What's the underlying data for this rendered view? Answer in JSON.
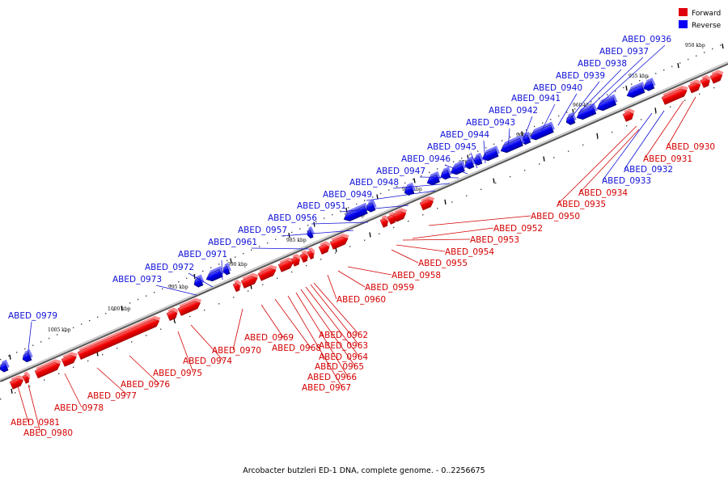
{
  "legend": {
    "forward_label": "Forward",
    "reverse_label": "Reverse",
    "forward_color": "#e0000e",
    "reverse_color": "#0a00f5"
  },
  "caption": "Arcobacter butzleri ED-1 DNA, complete genome. - 0..2256675",
  "ticks": [
    "950 kbp",
    "955 kbp",
    "960 kbp",
    "965 kbp",
    "970 kbp",
    "975 kbp",
    "980 kbp",
    "985 kbp",
    "990 kbp",
    "995 kbp",
    "1000 kbp",
    "1005 kbp"
  ],
  "reverse_genes": [
    "ABED_0936",
    "ABED_0937",
    "ABED_0938",
    "ABED_0939",
    "ABED_0940",
    "ABED_0941",
    "ABED_0942",
    "ABED_0943",
    "ABED_0944",
    "ABED_0945",
    "ABED_0946",
    "ABED_0947",
    "ABED_0948",
    "ABED_0949",
    "ABED_0951",
    "ABED_0956",
    "ABED_0957",
    "ABED_0961",
    "ABED_0971",
    "ABED_0972",
    "ABED_0973",
    "ABED_0979",
    "ABED_0932",
    "ABED_0933"
  ],
  "forward_genes": [
    "ABED_0930",
    "ABED_0931",
    "ABED_0934",
    "ABED_0935",
    "ABED_0950",
    "ABED_0952",
    "ABED_0953",
    "ABED_0954",
    "ABED_0955",
    "ABED_0958",
    "ABED_0959",
    "ABED_0960",
    "ABED_0962",
    "ABED_0963",
    "ABED_0964",
    "ABED_0965",
    "ABED_0966",
    "ABED_0967",
    "ABED_0968",
    "ABED_0969",
    "ABED_0970",
    "ABED_0974",
    "ABED_0975",
    "ABED_0976",
    "ABED_0977",
    "ABED_0978",
    "ABED_0980",
    "ABED_0981"
  ]
}
